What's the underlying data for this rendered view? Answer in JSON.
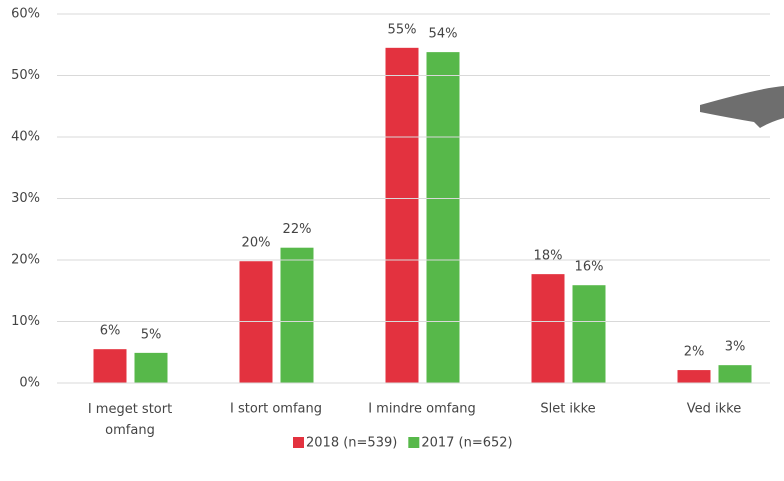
{
  "chart_data": {
    "type": "bar",
    "categories": [
      "I meget stort omfang",
      "I stort omfang",
      "I mindre omfang",
      "Slet ikke",
      "Ved ikke"
    ],
    "series": [
      {
        "name": "2018 (n=539)",
        "color": "#e3323f",
        "values": [
          5.5,
          19.8,
          54.5,
          17.7,
          2.1
        ],
        "value_labels": [
          "6%",
          "20%",
          "55%",
          "18%",
          "2%"
        ]
      },
      {
        "name": "2017 (n=652)",
        "color": "#57b84a",
        "values": [
          4.9,
          22.0,
          53.8,
          15.9,
          2.9
        ],
        "value_labels": [
          "5%",
          "22%",
          "54%",
          "16%",
          "3%"
        ]
      }
    ],
    "ylim": [
      0,
      60
    ],
    "yticks": [
      {
        "value": 0,
        "label": "0%"
      },
      {
        "value": 10,
        "label": "10%"
      },
      {
        "value": 20,
        "label": "20%"
      },
      {
        "value": 30,
        "label": "30%"
      },
      {
        "value": 40,
        "label": "40%"
      },
      {
        "value": 50,
        "label": "50%"
      },
      {
        "value": 60,
        "label": "60%"
      }
    ],
    "grid": true,
    "legend": "bottom"
  }
}
